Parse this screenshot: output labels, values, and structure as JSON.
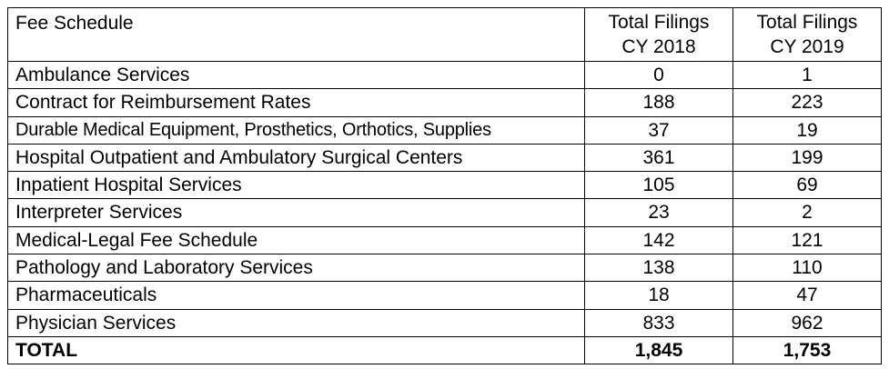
{
  "header": {
    "fee_schedule": "Fee Schedule",
    "col_2018": [
      "Total Filings",
      "CY 2018"
    ],
    "col_2019": [
      "Total Filings",
      "CY 2019"
    ]
  },
  "rows": [
    {
      "name": "Ambulance Services",
      "cy2018": "0",
      "cy2019": "1"
    },
    {
      "name": "Contract for Reimbursement Rates",
      "cy2018": "188",
      "cy2019": "223"
    },
    {
      "name": "Durable Medical Equipment, Prosthetics, Orthotics, Supplies",
      "cy2018": "37",
      "cy2019": "19"
    },
    {
      "name": "Hospital Outpatient and Ambulatory Surgical Centers",
      "cy2018": "361",
      "cy2019": "199"
    },
    {
      "name": "Inpatient Hospital Services",
      "cy2018": "105",
      "cy2019": "69"
    },
    {
      "name": "Interpreter Services",
      "cy2018": "23",
      "cy2019": "2"
    },
    {
      "name": "Medical-Legal Fee Schedule",
      "cy2018": "142",
      "cy2019": "121"
    },
    {
      "name": "Pathology and Laboratory Services",
      "cy2018": "138",
      "cy2019": "110"
    },
    {
      "name": "Pharmaceuticals",
      "cy2018": "18",
      "cy2019": "47"
    },
    {
      "name": "Physician Services",
      "cy2018": "833",
      "cy2019": "962"
    }
  ],
  "total": {
    "name": "TOTAL",
    "cy2018": "1,845",
    "cy2019": "1,753"
  }
}
